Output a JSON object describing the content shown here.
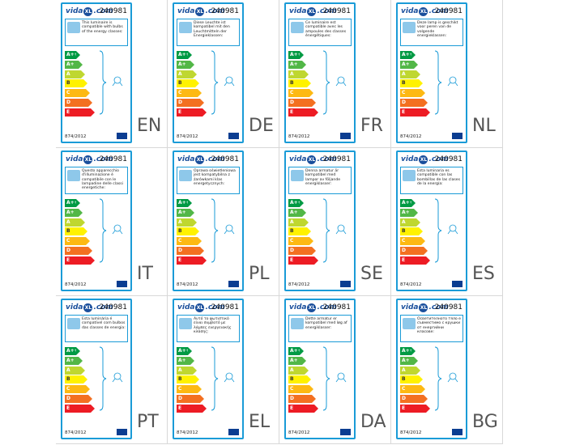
{
  "logo": {
    "name": "vida",
    "badge": "XL",
    "domain": ".com"
  },
  "product_code": "240981",
  "regulation": "874/2012",
  "classes": [
    "A++",
    "A+",
    "A",
    "B",
    "C",
    "D",
    "E"
  ],
  "labels": [
    {
      "lang": "EN",
      "text": "This luminaire is compatible with bulbs of the energy classes:"
    },
    {
      "lang": "DE",
      "text": "Diese Leuchte ist kompatibel mit den Leuchtmitteln der Energieklassen:"
    },
    {
      "lang": "FR",
      "text": "Ce luminaire est compatible avec les ampoules des classes énergétiques:"
    },
    {
      "lang": "NL",
      "text": "Deze lamp is geschikt voor peren van de volgende energieklassen:"
    },
    {
      "lang": "IT",
      "text": "Questo apparecchio d'illuminazione è compatibile con le lampadine delle classi energetiche:"
    },
    {
      "lang": "PL",
      "text": "Oprawa oświetleniowa jest kompatybilna z żarówkami klas energetycznych:"
    },
    {
      "lang": "SE",
      "text": "Denna armatur är kompatibel med lampor av följande energiklasser:"
    },
    {
      "lang": "ES",
      "text": "Esta luminaria es compatible con las bombillas de las clases de la energía:"
    },
    {
      "lang": "PT",
      "text": "Esta luminária é compatível com bulbos das classes de energia:"
    },
    {
      "lang": "EL",
      "text": "Αυτό το φωτιστικό είναι συμβατό με λάμπες ενεργειακής κλάσης:"
    },
    {
      "lang": "DA",
      "text": "Dette armatur er kompatibel med løg af energiklasser:"
    },
    {
      "lang": "BG",
      "text": "Осветителното тяло е съвместимо с крушки от енергийни класове:"
    }
  ]
}
